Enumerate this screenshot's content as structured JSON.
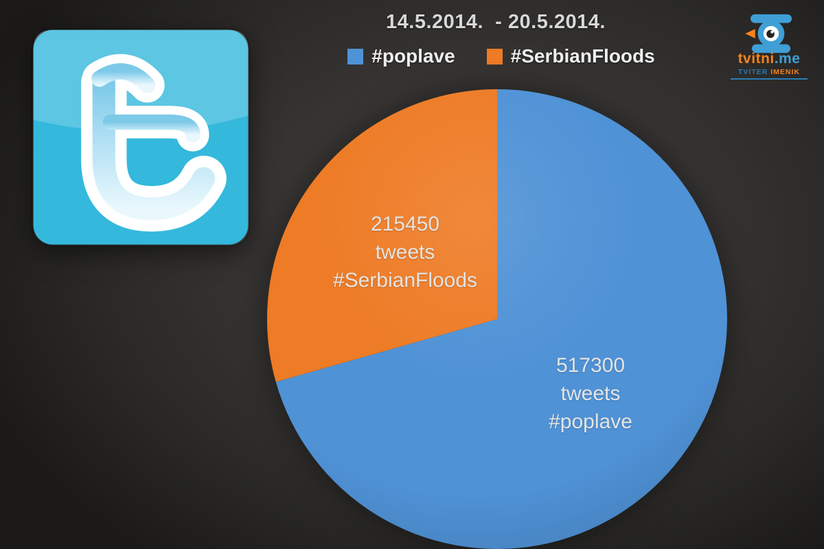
{
  "header": {
    "title": "14.5.2014.  - 20.5.2014."
  },
  "chart_data": {
    "type": "pie",
    "title": "14.5.2014.  - 20.5.2014.",
    "legend_position": "top",
    "start_angle_deg": 0,
    "series": [
      {
        "name": "#poplave",
        "value": 517300,
        "color": "#4f92d6",
        "label_lines": [
          "517300",
          "tweets",
          "#poplave"
        ]
      },
      {
        "name": "#SerbianFloods",
        "value": 215450,
        "color": "#ee7b25",
        "label_lines": [
          "215450",
          "tweets",
          "#SerbianFloods"
        ]
      }
    ]
  },
  "logos": {
    "twitter": {
      "name": "twitter-old-t-logo",
      "color": "#34b8dc"
    },
    "tvitni": {
      "brand": "tvitni",
      "tld": ".me",
      "tagline_word1": "TVITER",
      "tagline_word2": "IMENIK",
      "blue": "#3f9fd6",
      "dark_blue": "#2b7cb4",
      "orange": "#f5821e",
      "pupil": "#24231f"
    }
  }
}
